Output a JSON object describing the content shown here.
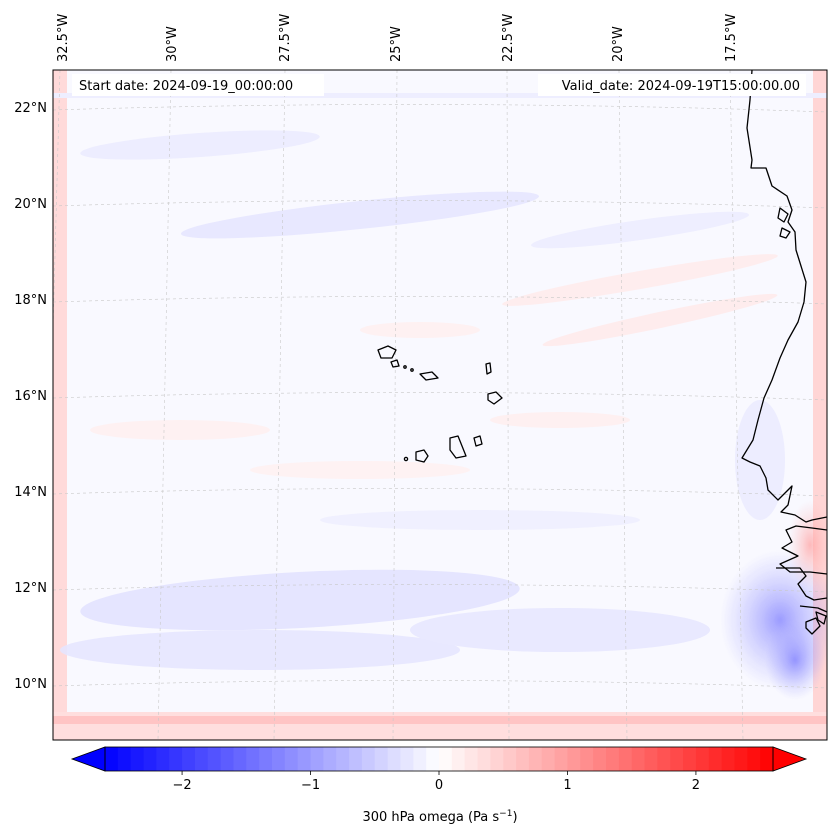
{
  "map": {
    "start_date": "Start date: 2024-09-19_00:00:00",
    "valid_date": "Valid_date: 2024-09-19T15:00:00.00",
    "lon_labels": [
      "32.5°W",
      "30°W",
      "27.5°W",
      "25°W",
      "22.5°W",
      "20°W",
      "17.5°W"
    ],
    "lat_labels": [
      "22°N",
      "20°N",
      "18°N",
      "16°N",
      "14°N",
      "12°N",
      "10°N"
    ],
    "field": "300 hPa omega",
    "colormap": "bwr"
  },
  "colorbar": {
    "label_prefix": "300 hPa omega (Pa s",
    "label_exp": "−1",
    "label_suffix": ")",
    "range": [
      -2.6,
      2.6
    ],
    "ticks": [
      "−2",
      "−1",
      "0",
      "1",
      "2"
    ],
    "tick_values": [
      -2,
      -1,
      0,
      1,
      2
    ],
    "n_levels": 52,
    "extend": "both"
  },
  "colors": {
    "negative": "#0000ff",
    "neutral": "#ffffff",
    "positive": "#ff0000",
    "coastline": "#000000",
    "gridline": "#bbbbbb"
  }
}
